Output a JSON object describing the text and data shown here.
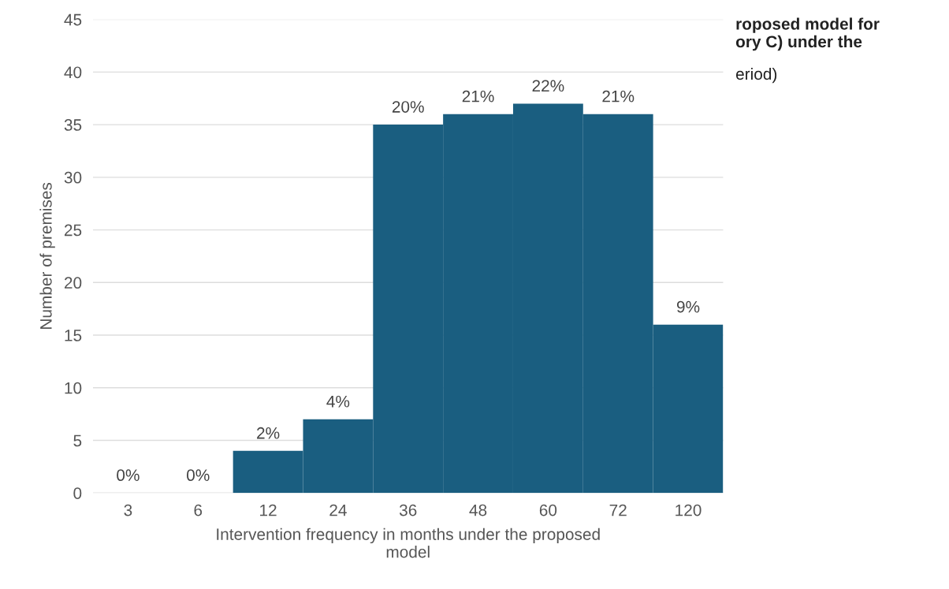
{
  "chart_data": {
    "type": "bar",
    "title": "roposed model for\nory C) under the",
    "subtitle": "eriod)",
    "xlabel": "Intervention frequency in months under the proposed\nmodel",
    "ylabel": "Number of premises",
    "categories": [
      "3",
      "6",
      "12",
      "24",
      "36",
      "48",
      "60",
      "72",
      "120"
    ],
    "values": [
      0,
      0,
      4,
      7,
      35,
      36,
      37,
      36,
      16
    ],
    "annotations": [
      {
        "text": "0%",
        "x": "3",
        "y": 0
      },
      {
        "text": "0%",
        "x": "6",
        "y": 0
      },
      {
        "text": "2%",
        "x": "12",
        "y": 4
      },
      {
        "text": "4%",
        "x": "24",
        "y": 7
      },
      {
        "text": "20%",
        "x": "36",
        "y": 35
      },
      {
        "text": "21%",
        "x": "48",
        "y": 36
      },
      {
        "text": "22%",
        "x": "60",
        "y": 37
      },
      {
        "text": "21%",
        "x": "72",
        "y": 36
      },
      {
        "text": "9%",
        "x": "120",
        "y": 16
      }
    ],
    "color": "#1a5e80",
    "ylim": [
      0,
      45
    ],
    "yticks": [
      0,
      5,
      10,
      15,
      20,
      25,
      30,
      35,
      40,
      45
    ],
    "grid": "y"
  }
}
